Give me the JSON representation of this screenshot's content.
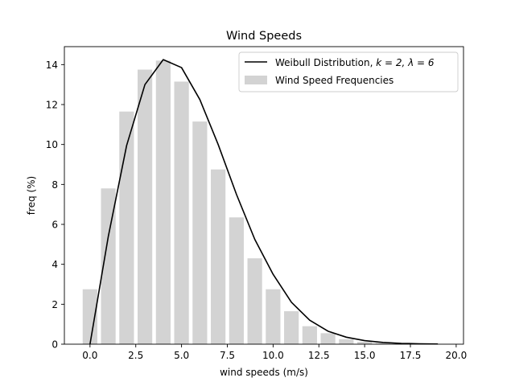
{
  "chart_data": {
    "type": "bar",
    "title": "Wind Speeds",
    "xlabel": "wind speeds (m/s)",
    "ylabel": "freq (%)",
    "xlim": [
      -1.4,
      20.4
    ],
    "ylim": [
      0,
      14.9
    ],
    "xticks": [
      0.0,
      2.5,
      5.0,
      7.5,
      10.0,
      12.5,
      15.0,
      17.5,
      20.0
    ],
    "xtick_labels": [
      "0.0",
      "2.5",
      "5.0",
      "7.5",
      "10.0",
      "12.5",
      "15.0",
      "17.5",
      "20.0"
    ],
    "yticks": [
      0,
      2,
      4,
      6,
      8,
      10,
      12,
      14
    ],
    "ytick_labels": [
      "0",
      "2",
      "4",
      "6",
      "8",
      "10",
      "12",
      "14"
    ],
    "grid": false,
    "legend_position": "top-right",
    "bars": {
      "name": "Wind Speed Frequencies",
      "color": "#d3d3d3",
      "x": [
        0,
        1,
        2,
        3,
        4,
        5,
        6,
        7,
        8,
        9,
        10,
        11,
        12,
        13,
        14,
        15,
        16,
        17,
        18,
        19
      ],
      "values": [
        2.75,
        7.8,
        11.65,
        13.75,
        14.2,
        13.15,
        11.15,
        8.75,
        6.35,
        4.3,
        2.75,
        1.65,
        0.9,
        0.55,
        0.25,
        0.12,
        0.06,
        0.03,
        0.01,
        0.005
      ]
    },
    "line": {
      "name": "Weibull Distribution, $k = 2, \\lambda = 6$",
      "name_prefix": "Weibull Distribution, ",
      "name_math": "k = 2, λ = 6",
      "color": "#000000",
      "x": [
        0,
        1,
        2,
        3,
        4,
        5,
        6,
        7,
        8,
        9,
        10,
        11,
        12,
        13,
        14,
        15,
        16,
        17,
        18,
        19
      ],
      "values": [
        0.0,
        5.4,
        9.95,
        13.0,
        14.25,
        13.85,
        12.25,
        10.0,
        7.5,
        5.25,
        3.5,
        2.1,
        1.2,
        0.65,
        0.35,
        0.18,
        0.09,
        0.04,
        0.02,
        0.01
      ]
    }
  }
}
